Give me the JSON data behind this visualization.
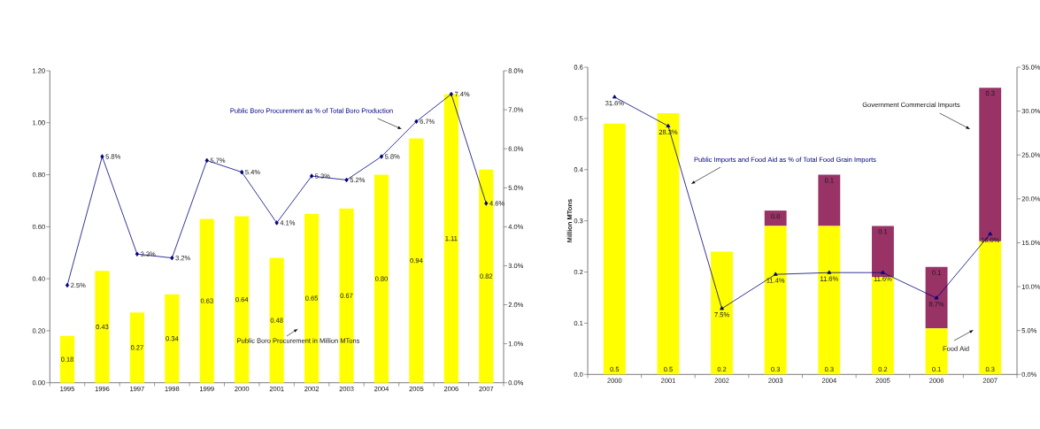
{
  "chart_data": [
    {
      "type": "bar",
      "categories": [
        "1995",
        "1996",
        "1997",
        "1998",
        "1999",
        "2000",
        "2001",
        "2002",
        "2003",
        "2004",
        "2005",
        "2006",
        "2007"
      ],
      "series": [
        {
          "name": "Public Boro Procurement in Million MTons",
          "color": "#ffff00",
          "values": [
            0.18,
            0.43,
            0.27,
            0.34,
            0.63,
            0.64,
            0.48,
            0.65,
            0.67,
            0.8,
            0.94,
            1.11,
            0.82
          ],
          "value_labels": [
            "0.18",
            "0.43",
            "0.27",
            "0.34",
            "0.63",
            "0.64",
            "0.48",
            "0.65",
            "0.67",
            "0.80",
            "0.94",
            "1.11",
            "0.82"
          ]
        },
        {
          "name": "Public Boro Procurement as % of Total Boro Production",
          "type": "line",
          "axis": "y2",
          "color": "#000080",
          "marker": "diamond",
          "values": [
            2.5,
            5.8,
            3.3,
            3.2,
            5.7,
            5.4,
            4.1,
            5.3,
            5.2,
            5.8,
            6.7,
            7.4,
            4.6
          ],
          "value_labels": [
            "2.5%",
            "5.8%",
            "3.3%",
            "3.2%",
            "5.7%",
            "5.4%",
            "4.1%",
            "5.3%",
            "5.2%",
            "5.8%",
            "6.7%",
            "7.4%",
            "4.6%"
          ]
        }
      ],
      "ylim": [
        0,
        1.2
      ],
      "yticks": [
        {
          "value": 0,
          "label": "0.00"
        },
        {
          "value": 0.2,
          "label": "0.20"
        },
        {
          "value": 0.4,
          "label": "0.40"
        },
        {
          "value": 0.6,
          "label": "0.60"
        },
        {
          "value": 0.8,
          "label": "0.80"
        },
        {
          "value": 1.0,
          "label": "1.00"
        },
        {
          "value": 1.2,
          "label": "1.20"
        }
      ],
      "y2lim": [
        0,
        8
      ],
      "y2ticks": [
        {
          "value": 0,
          "label": "0.0%"
        },
        {
          "value": 1,
          "label": "1.0%"
        },
        {
          "value": 2,
          "label": "2.0%"
        },
        {
          "value": 3,
          "label": "3.0%"
        },
        {
          "value": 4,
          "label": "4.0%"
        },
        {
          "value": 5,
          "label": "5.0%"
        },
        {
          "value": 6,
          "label": "6.0%"
        },
        {
          "value": 7,
          "label": "7.0%"
        },
        {
          "value": 8,
          "label": "8.0%"
        }
      ]
    },
    {
      "type": "bar",
      "stacked": true,
      "ylabel": "Million MTons",
      "categories": [
        "2000",
        "2001",
        "2002",
        "2003",
        "2004",
        "2005",
        "2006",
        "2007"
      ],
      "series": [
        {
          "name": "Food Aid",
          "color": "#ffff00",
          "values": [
            0.49,
            0.51,
            0.24,
            0.29,
            0.29,
            0.19,
            0.09,
            0.26
          ],
          "value_labels": [
            "0.5",
            "0.5",
            "0.2",
            "0.3",
            "0.3",
            "0.2",
            "0.1",
            "0.3"
          ]
        },
        {
          "name": "Government Commercial Imports",
          "color": "#993366",
          "values": [
            null,
            null,
            null,
            0.03,
            0.1,
            0.1,
            0.12,
            0.3
          ],
          "value_labels": [
            null,
            null,
            null,
            "0.0",
            "0.1",
            "0.1",
            "0.1",
            "0.3"
          ]
        },
        {
          "name": "Public Imports and Food Aid as % of Total Food Grain Imports",
          "type": "line",
          "axis": "y2",
          "color": "#000080",
          "marker": "triangle",
          "values": [
            31.6,
            28.3,
            7.5,
            11.4,
            11.6,
            11.6,
            8.7,
            16.0
          ],
          "value_labels": [
            "31.6%",
            "28.3%",
            "7.5%",
            "11.4%",
            "11.6%",
            "11.6%",
            "8.7%",
            "16.0%"
          ]
        }
      ],
      "ylim": [
        0,
        0.6
      ],
      "yticks": [
        {
          "value": 0,
          "label": "0.0"
        },
        {
          "value": 0.1,
          "label": "0.1"
        },
        {
          "value": 0.2,
          "label": "0.2"
        },
        {
          "value": 0.3,
          "label": "0.3"
        },
        {
          "value": 0.4,
          "label": "0.4"
        },
        {
          "value": 0.5,
          "label": "0.5"
        },
        {
          "value": 0.6,
          "label": "0.6"
        }
      ],
      "y2lim": [
        0,
        35
      ],
      "y2ticks": [
        {
          "value": 0,
          "label": "0.0%"
        },
        {
          "value": 5,
          "label": "5.0%"
        },
        {
          "value": 10,
          "label": "10.0%"
        },
        {
          "value": 15,
          "label": "15.0%"
        },
        {
          "value": 20,
          "label": "20.0%"
        },
        {
          "value": 25,
          "label": "25.0%"
        },
        {
          "value": 30,
          "label": "30.0%"
        },
        {
          "value": 35,
          "label": "35.0%"
        }
      ]
    }
  ]
}
